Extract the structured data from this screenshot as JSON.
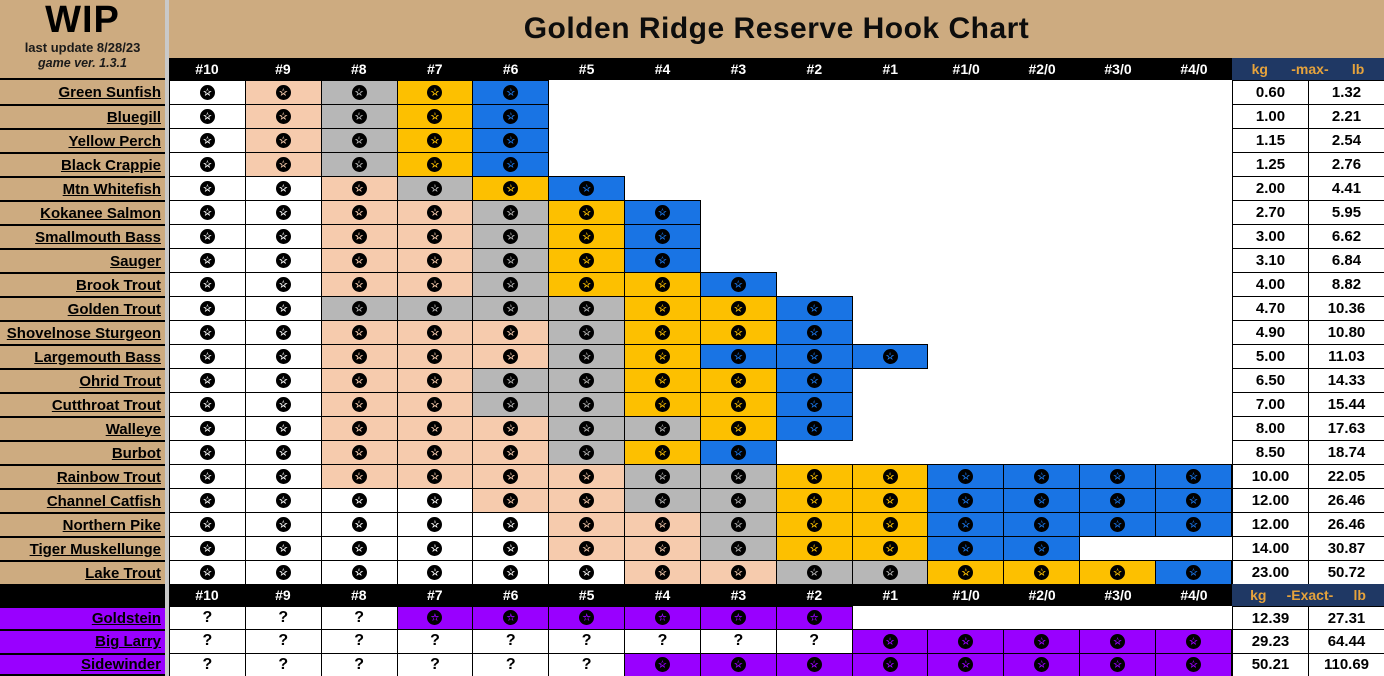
{
  "meta": {
    "wip": "WIP",
    "last_update": "last update 8/28/23",
    "game_ver": "game ver. 1.3.1"
  },
  "title": "Golden Ridge Reserve Hook Chart",
  "hook_sizes": [
    "#10",
    "#9",
    "#8",
    "#7",
    "#6",
    "#5",
    "#4",
    "#3",
    "#2",
    "#1",
    "#1/0",
    "#2/0",
    "#3/0",
    "#4/0"
  ],
  "weight_headers": {
    "top": {
      "kg": "kg",
      "mode": "-max-",
      "lb": "lb"
    },
    "bottom": {
      "kg": "kg",
      "mode": "-Exact-",
      "lb": "lb"
    }
  },
  "icons": {
    "hook_star_glyph": "★",
    "unknown_marker": "?"
  },
  "palette": {
    "w": "#FFFFFF",
    "p": "#F6CBAD",
    "g": "#B7B7B7",
    "y": "#FDC000",
    "b": "#1974E4",
    "v": "#9900FF",
    "tan": "#CDAB80",
    "navy": "#1F3864",
    "header_text_gold": "#E6A33C"
  },
  "fish": [
    {
      "name": "Green Sunfish",
      "cells": [
        "w",
        "p",
        "g",
        "y",
        "b",
        "",
        "",
        "",
        "",
        "",
        "",
        "",
        "",
        ""
      ],
      "kg": "0.60",
      "lb": "1.32"
    },
    {
      "name": "Bluegill",
      "cells": [
        "w",
        "p",
        "g",
        "y",
        "b",
        "",
        "",
        "",
        "",
        "",
        "",
        "",
        "",
        ""
      ],
      "kg": "1.00",
      "lb": "2.21"
    },
    {
      "name": "Yellow Perch",
      "cells": [
        "w",
        "p",
        "g",
        "y",
        "b",
        "",
        "",
        "",
        "",
        "",
        "",
        "",
        "",
        ""
      ],
      "kg": "1.15",
      "lb": "2.54"
    },
    {
      "name": "Black Crappie",
      "cells": [
        "w",
        "p",
        "g",
        "y",
        "b",
        "",
        "",
        "",
        "",
        "",
        "",
        "",
        "",
        ""
      ],
      "kg": "1.25",
      "lb": "2.76"
    },
    {
      "name": "Mtn Whitefish",
      "cells": [
        "w",
        "w",
        "p",
        "g",
        "y",
        "b",
        "",
        "",
        "",
        "",
        "",
        "",
        "",
        ""
      ],
      "kg": "2.00",
      "lb": "4.41"
    },
    {
      "name": "Kokanee Salmon",
      "cells": [
        "w",
        "w",
        "p",
        "p",
        "g",
        "y",
        "b",
        "",
        "",
        "",
        "",
        "",
        "",
        ""
      ],
      "kg": "2.70",
      "lb": "5.95"
    },
    {
      "name": "Smallmouth Bass",
      "cells": [
        "w",
        "w",
        "p",
        "p",
        "g",
        "y",
        "b",
        "",
        "",
        "",
        "",
        "",
        "",
        ""
      ],
      "kg": "3.00",
      "lb": "6.62"
    },
    {
      "name": "Sauger",
      "cells": [
        "w",
        "w",
        "p",
        "p",
        "g",
        "y",
        "b",
        "",
        "",
        "",
        "",
        "",
        "",
        ""
      ],
      "kg": "3.10",
      "lb": "6.84"
    },
    {
      "name": "Brook Trout",
      "cells": [
        "w",
        "w",
        "p",
        "p",
        "g",
        "y",
        "y",
        "b",
        "",
        "",
        "",
        "",
        "",
        ""
      ],
      "kg": "4.00",
      "lb": "8.82"
    },
    {
      "name": "Golden Trout",
      "cells": [
        "w",
        "w",
        "g",
        "g",
        "g",
        "g",
        "y",
        "y",
        "b",
        "",
        "",
        "",
        "",
        ""
      ],
      "kg": "4.70",
      "lb": "10.36"
    },
    {
      "name": "Shovelnose Sturgeon",
      "cells": [
        "w",
        "w",
        "p",
        "p",
        "p",
        "g",
        "y",
        "y",
        "b",
        "",
        "",
        "",
        "",
        ""
      ],
      "kg": "4.90",
      "lb": "10.80"
    },
    {
      "name": "Largemouth Bass",
      "cells": [
        "w",
        "w",
        "p",
        "p",
        "p",
        "g",
        "y",
        "b",
        "b",
        "b",
        "",
        "",
        "",
        ""
      ],
      "kg": "5.00",
      "lb": "11.03"
    },
    {
      "name": "Ohrid Trout",
      "cells": [
        "w",
        "w",
        "p",
        "p",
        "g",
        "g",
        "y",
        "y",
        "b",
        "",
        "",
        "",
        "",
        ""
      ],
      "kg": "6.50",
      "lb": "14.33"
    },
    {
      "name": "Cutthroat Trout",
      "cells": [
        "w",
        "w",
        "p",
        "p",
        "g",
        "g",
        "y",
        "y",
        "b",
        "",
        "",
        "",
        "",
        ""
      ],
      "kg": "7.00",
      "lb": "15.44"
    },
    {
      "name": "Walleye",
      "cells": [
        "w",
        "w",
        "p",
        "p",
        "p",
        "g",
        "g",
        "y",
        "b",
        "",
        "",
        "",
        "",
        ""
      ],
      "kg": "8.00",
      "lb": "17.63"
    },
    {
      "name": "Burbot",
      "cells": [
        "w",
        "w",
        "p",
        "p",
        "p",
        "g",
        "y",
        "b",
        "",
        "",
        "",
        "",
        "",
        ""
      ],
      "kg": "8.50",
      "lb": "18.74"
    },
    {
      "name": "Rainbow Trout",
      "cells": [
        "w",
        "w",
        "p",
        "p",
        "p",
        "p",
        "g",
        "g",
        "y",
        "y",
        "b",
        "b",
        "b",
        "b"
      ],
      "kg": "10.00",
      "lb": "22.05"
    },
    {
      "name": "Channel Catfish",
      "cells": [
        "w",
        "w",
        "w",
        "w",
        "p",
        "p",
        "g",
        "g",
        "y",
        "y",
        "b",
        "b",
        "b",
        "b"
      ],
      "kg": "12.00",
      "lb": "26.46"
    },
    {
      "name": "Northern Pike",
      "cells": [
        "w",
        "w",
        "w",
        "w",
        "w",
        "p",
        "p",
        "g",
        "y",
        "y",
        "b",
        "b",
        "b",
        "b"
      ],
      "kg": "12.00",
      "lb": "26.46"
    },
    {
      "name": "Tiger Muskellunge",
      "cells": [
        "w",
        "w",
        "w",
        "w",
        "w",
        "p",
        "p",
        "g",
        "y",
        "y",
        "b",
        "b",
        "",
        ""
      ],
      "kg": "14.00",
      "lb": "30.87"
    },
    {
      "name": "Lake Trout",
      "cells": [
        "w",
        "w",
        "w",
        "w",
        "w",
        "w",
        "p",
        "p",
        "g",
        "g",
        "y",
        "y",
        "y",
        "b"
      ],
      "kg": "23.00",
      "lb": "50.72"
    }
  ],
  "boss_fish": [
    {
      "name": "Goldstein",
      "cells": [
        "q",
        "q",
        "q",
        "v",
        "v",
        "v",
        "v",
        "v",
        "v",
        "",
        "",
        "",
        "",
        ""
      ],
      "kg": "12.39",
      "lb": "27.31"
    },
    {
      "name": "Big Larry",
      "cells": [
        "q",
        "q",
        "q",
        "q",
        "q",
        "q",
        "q",
        "q",
        "q",
        "v",
        "v",
        "v",
        "v",
        "v"
      ],
      "kg": "29.23",
      "lb": "64.44"
    },
    {
      "name": "Sidewinder",
      "cells": [
        "q",
        "q",
        "q",
        "q",
        "q",
        "q",
        "v",
        "v",
        "v",
        "v",
        "v",
        "v",
        "v",
        "v"
      ],
      "kg": "50.21",
      "lb": "110.69"
    }
  ]
}
